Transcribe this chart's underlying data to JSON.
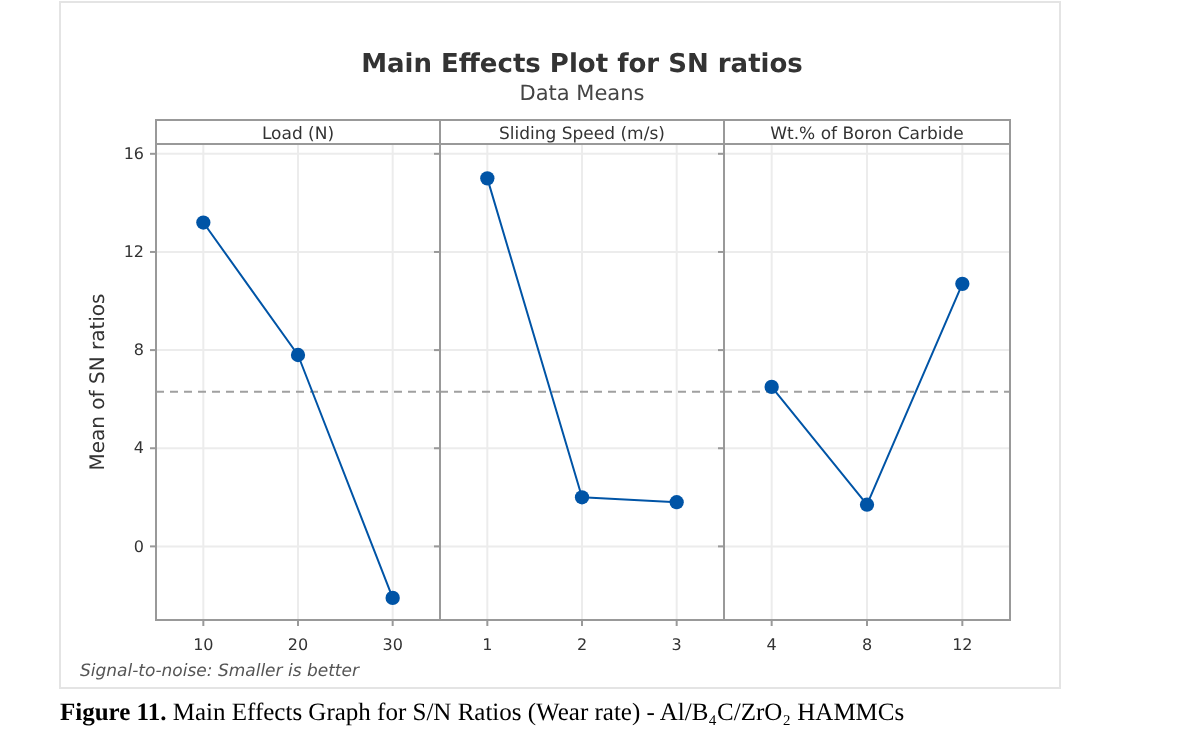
{
  "chart_data": [
    {
      "type": "other",
      "title": "Main Effects Plot for SN ratios",
      "subtitle": "Data Means",
      "annotations": [
        "Signal-to-noise: Smaller is better",
        "Figure 11. Main Effects Graph for S/N Ratios (Wear rate) - Al/B₄C/ZrO₂ HAMMCs"
      ]
    },
    {
      "type": "line",
      "title": "Load (N)",
      "ylabel": "Mean of SN ratios",
      "categories": [
        "10",
        "20",
        "30"
      ],
      "values": [
        13.2,
        7.8,
        -2.1
      ],
      "color": "#0054a6",
      "marker": "circle",
      "ylim": [
        -3,
        16.4
      ],
      "yticks": [
        0,
        4,
        8,
        12,
        16
      ],
      "grid": true,
      "ref_lines": [
        {
          "axis": "y",
          "value": 6.3,
          "color": "#a0a0a0",
          "line_style": "dashed"
        }
      ]
    },
    {
      "type": "line",
      "title": "Sliding Speed (m/s)",
      "categories": [
        "1",
        "2",
        "3"
      ],
      "values": [
        15.0,
        2.0,
        1.8
      ],
      "color": "#0054a6",
      "marker": "circle",
      "ylim": [
        -3,
        16.4
      ],
      "yticks": [
        0,
        4,
        8,
        12,
        16
      ],
      "grid": true,
      "tick_labels": "x",
      "ref_lines": [
        {
          "axis": "y",
          "value": 6.3,
          "color": "#a0a0a0",
          "line_style": "dashed"
        }
      ]
    },
    {
      "type": "line",
      "title": "Wt.% of Boron Carbide",
      "categories": [
        "4",
        "8",
        "12"
      ],
      "values": [
        6.5,
        1.7,
        10.7
      ],
      "color": "#0054a6",
      "marker": "circle",
      "ylim": [
        -3,
        16.4
      ],
      "yticks": [
        0,
        4,
        8,
        12,
        16
      ],
      "grid": true,
      "tick_labels": "x",
      "ref_lines": [
        {
          "axis": "y",
          "value": 6.3,
          "color": "#a0a0a0",
          "line_style": "dashed"
        }
      ]
    }
  ]
}
